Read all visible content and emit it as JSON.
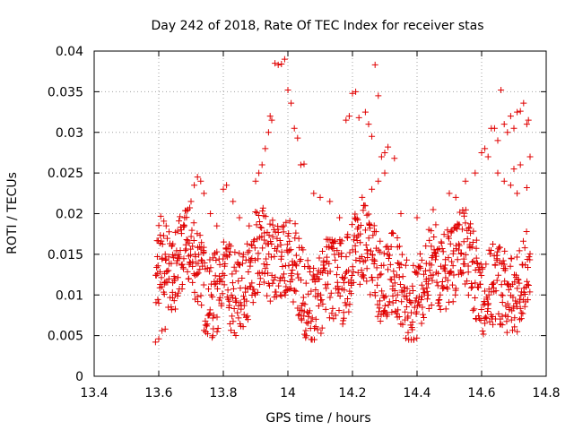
{
  "chart_data": {
    "type": "scatter",
    "title": "Day 242 of 2018, Rate Of TEC Index for receiver stas",
    "xlabel": "GPS time / hours",
    "ylabel": "ROTI / TECUs",
    "xlim": [
      13.4,
      14.8
    ],
    "ylim": [
      0,
      0.04
    ],
    "x_ticks": [
      "13.4",
      "13.6",
      "13.8",
      "14",
      "14.2",
      "14.4",
      "14.6",
      "14.8"
    ],
    "y_ticks": [
      "0",
      "0.005",
      "0.01",
      "0.015",
      "0.02",
      "0.025",
      "0.03",
      "0.035",
      "0.04"
    ],
    "grid": true,
    "marker": "+",
    "marker_color": "#e00000",
    "series": [
      {
        "name": "ROTI",
        "points": [
          [
            13.59,
            0.0042
          ],
          [
            13.6,
            0.0046
          ],
          [
            13.61,
            0.0056
          ],
          [
            13.62,
            0.0058
          ],
          [
            13.6,
            0.009
          ],
          [
            13.61,
            0.011
          ],
          [
            13.62,
            0.015
          ],
          [
            13.63,
            0.013
          ],
          [
            13.64,
            0.016
          ],
          [
            13.65,
            0.012
          ],
          [
            13.66,
            0.0145
          ],
          [
            13.67,
            0.018
          ],
          [
            13.68,
            0.0195
          ],
          [
            13.69,
            0.0205
          ],
          [
            13.7,
            0.0215
          ],
          [
            13.71,
            0.0235
          ],
          [
            13.72,
            0.0245
          ],
          [
            13.73,
            0.024
          ],
          [
            13.74,
            0.0225
          ],
          [
            13.76,
            0.02
          ],
          [
            13.78,
            0.0185
          ],
          [
            13.8,
            0.023
          ],
          [
            13.81,
            0.0235
          ],
          [
            13.83,
            0.0215
          ],
          [
            13.85,
            0.0195
          ],
          [
            13.88,
            0.0185
          ],
          [
            13.9,
            0.024
          ],
          [
            13.91,
            0.025
          ],
          [
            13.92,
            0.026
          ],
          [
            13.93,
            0.028
          ],
          [
            13.94,
            0.03
          ],
          [
            13.945,
            0.032
          ],
          [
            13.95,
            0.0315
          ],
          [
            13.96,
            0.0385
          ],
          [
            13.97,
            0.0383
          ],
          [
            13.98,
            0.0384
          ],
          [
            13.99,
            0.039
          ],
          [
            14.0,
            0.0352
          ],
          [
            14.01,
            0.0336
          ],
          [
            14.02,
            0.0305
          ],
          [
            14.03,
            0.0293
          ],
          [
            14.04,
            0.026
          ],
          [
            14.05,
            0.0261
          ],
          [
            14.08,
            0.0225
          ],
          [
            14.1,
            0.022
          ],
          [
            14.13,
            0.0215
          ],
          [
            14.16,
            0.0195
          ],
          [
            14.18,
            0.0315
          ],
          [
            14.19,
            0.032
          ],
          [
            14.2,
            0.0348
          ],
          [
            14.21,
            0.035
          ],
          [
            14.22,
            0.0318
          ],
          [
            14.24,
            0.0325
          ],
          [
            14.25,
            0.031
          ],
          [
            14.26,
            0.0295
          ],
          [
            14.27,
            0.0383
          ],
          [
            14.28,
            0.0345
          ],
          [
            14.29,
            0.027
          ],
          [
            14.3,
            0.0275
          ],
          [
            14.31,
            0.0282
          ],
          [
            14.33,
            0.0268
          ],
          [
            14.3,
            0.025
          ],
          [
            14.28,
            0.024
          ],
          [
            14.26,
            0.023
          ],
          [
            14.23,
            0.022
          ],
          [
            14.35,
            0.02
          ],
          [
            14.4,
            0.0195
          ],
          [
            14.45,
            0.0205
          ],
          [
            14.5,
            0.0225
          ],
          [
            14.52,
            0.022
          ],
          [
            14.55,
            0.024
          ],
          [
            14.58,
            0.025
          ],
          [
            14.6,
            0.0275
          ],
          [
            14.61,
            0.028
          ],
          [
            14.62,
            0.027
          ],
          [
            14.63,
            0.0305
          ],
          [
            14.64,
            0.0305
          ],
          [
            14.65,
            0.029
          ],
          [
            14.66,
            0.0352
          ],
          [
            14.67,
            0.031
          ],
          [
            14.68,
            0.03
          ],
          [
            14.69,
            0.032
          ],
          [
            14.7,
            0.0305
          ],
          [
            14.71,
            0.0325
          ],
          [
            14.72,
            0.0326
          ],
          [
            14.73,
            0.0336
          ],
          [
            14.74,
            0.031
          ],
          [
            14.745,
            0.0315
          ],
          [
            14.65,
            0.025
          ],
          [
            14.67,
            0.024
          ],
          [
            14.7,
            0.0255
          ],
          [
            14.72,
            0.026
          ],
          [
            14.74,
            0.0232
          ],
          [
            14.71,
            0.0225
          ],
          [
            14.69,
            0.0235
          ],
          [
            14.75,
            0.027
          ]
        ]
      }
    ]
  }
}
